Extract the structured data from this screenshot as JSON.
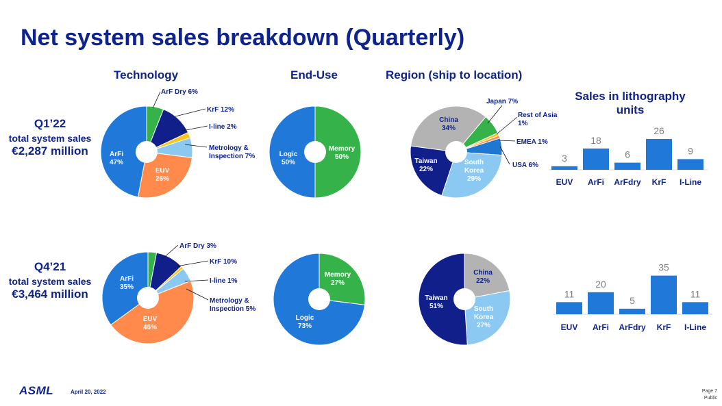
{
  "title": "Net system sales breakdown (Quarterly)",
  "headers": {
    "technology": "Technology",
    "end_use": "End-Use",
    "region": "Region (ship to location)",
    "units_line1": "Sales in lithography",
    "units_line2": "units"
  },
  "rows": [
    {
      "quarter": "Q1’22",
      "line2": "total system sales",
      "amount": "€2,287 million"
    },
    {
      "quarter": "Q4’21",
      "line2": "total system sales",
      "amount": "€3,464 million"
    }
  ],
  "colors": {
    "title": "#0f238c",
    "ArFi": "#2079d9",
    "ArF Dry": "#36b24a",
    "KrF": "#101f8a",
    "I-line": "#f7c51e",
    "Metrology & Inspection": "#8cc9f2",
    "EUV": "#ff8a4c",
    "Logic": "#2079d9",
    "Memory": "#36b24a",
    "China": "#b3b3b3",
    "Japan": "#36b24a",
    "Rest of Asia": "#f7c51e",
    "EMEA": "#ff8a4c",
    "USA": "#1e78d2",
    "South Korea": "#8cc9f2",
    "Taiwan": "#101f8a",
    "bar": "#2079d9"
  },
  "chart_data": [
    {
      "type": "pie",
      "group": "Technology",
      "period": "Q1’22",
      "slices": [
        {
          "name": "ArF Dry",
          "value": 6,
          "label_lines": [
            "ArF Dry 6%"
          ]
        },
        {
          "name": "KrF",
          "value": 12,
          "label_lines": [
            "KrF 12%"
          ]
        },
        {
          "name": "I-line",
          "value": 2,
          "label_lines": [
            "I-line 2%"
          ]
        },
        {
          "name": "Metrology & Inspection",
          "value": 7,
          "label_lines": [
            "Metrology &",
            "Inspection 7%"
          ]
        },
        {
          "name": "EUV",
          "value": 26,
          "label_lines": [
            "EUV",
            "26%"
          ]
        },
        {
          "name": "ArFi",
          "value": 47,
          "label_lines": [
            "ArFi",
            "47%"
          ]
        }
      ]
    },
    {
      "type": "pie",
      "group": "End-Use",
      "period": "Q1’22",
      "slices": [
        {
          "name": "Memory",
          "value": 50,
          "label_lines": [
            "Memory",
            "50%"
          ]
        },
        {
          "name": "Logic",
          "value": 50,
          "label_lines": [
            "Logic",
            "50%"
          ]
        }
      ]
    },
    {
      "type": "pie",
      "group": "Region (ship to location)",
      "period": "Q1’22",
      "slices": [
        {
          "name": "Japan",
          "value": 7,
          "label_lines": [
            "Japan 7%"
          ]
        },
        {
          "name": "Rest of Asia",
          "value": 1,
          "label_lines": [
            "Rest of Asia",
            "1%"
          ]
        },
        {
          "name": "EMEA",
          "value": 1,
          "label_lines": [
            "EMEA 1%"
          ]
        },
        {
          "name": "USA",
          "value": 6,
          "label_lines": [
            "USA 6%"
          ]
        },
        {
          "name": "South Korea",
          "value": 29,
          "label_lines": [
            "South",
            "Korea",
            "29%"
          ]
        },
        {
          "name": "Taiwan",
          "value": 22,
          "label_lines": [
            "Taiwan",
            "22%"
          ]
        },
        {
          "name": "China",
          "value": 34,
          "label_lines": [
            "China",
            "34%"
          ]
        }
      ]
    },
    {
      "type": "bar",
      "group": "Sales in lithography units",
      "period": "Q1’22",
      "categories": [
        "EUV",
        "ArFi",
        "ArFdry",
        "KrF",
        "I-Line"
      ],
      "values": [
        3,
        18,
        6,
        26,
        9
      ]
    },
    {
      "type": "pie",
      "group": "Technology",
      "period": "Q4’21",
      "slices": [
        {
          "name": "ArF Dry",
          "value": 3,
          "label_lines": [
            "ArF Dry 3%"
          ]
        },
        {
          "name": "KrF",
          "value": 10,
          "label_lines": [
            "KrF 10%"
          ]
        },
        {
          "name": "I-line",
          "value": 1,
          "label_lines": [
            "I-line 1%"
          ]
        },
        {
          "name": "Metrology & Inspection",
          "value": 5,
          "label_lines": [
            "Metrology &",
            "Inspection 5%"
          ]
        },
        {
          "name": "EUV",
          "value": 46,
          "label_lines": [
            "EUV",
            "46%"
          ]
        },
        {
          "name": "ArFi",
          "value": 35,
          "label_lines": [
            "ArFi",
            "35%"
          ]
        }
      ]
    },
    {
      "type": "pie",
      "group": "End-Use",
      "period": "Q4’21",
      "slices": [
        {
          "name": "Memory",
          "value": 27,
          "label_lines": [
            "Memory",
            "27%"
          ]
        },
        {
          "name": "Logic",
          "value": 73,
          "label_lines": [
            "Logic",
            "73%"
          ]
        }
      ]
    },
    {
      "type": "pie",
      "group": "Region (ship to location)",
      "period": "Q4’21",
      "slices": [
        {
          "name": "China",
          "value": 22,
          "label_lines": [
            "China",
            "22%"
          ]
        },
        {
          "name": "South Korea",
          "value": 27,
          "label_lines": [
            "South",
            "Korea",
            "27%"
          ]
        },
        {
          "name": "Taiwan",
          "value": 51,
          "label_lines": [
            "Taiwan",
            "51%"
          ]
        }
      ]
    },
    {
      "type": "bar",
      "group": "Sales in lithography units",
      "period": "Q4’21",
      "categories": [
        "EUV",
        "ArFi",
        "ArFdry",
        "KrF",
        "I-Line"
      ],
      "values": [
        11,
        20,
        5,
        35,
        11
      ]
    }
  ],
  "footer": {
    "logo": "ASML",
    "date": "April 20, 2022",
    "page": "Page 7",
    "classification": "Public"
  }
}
